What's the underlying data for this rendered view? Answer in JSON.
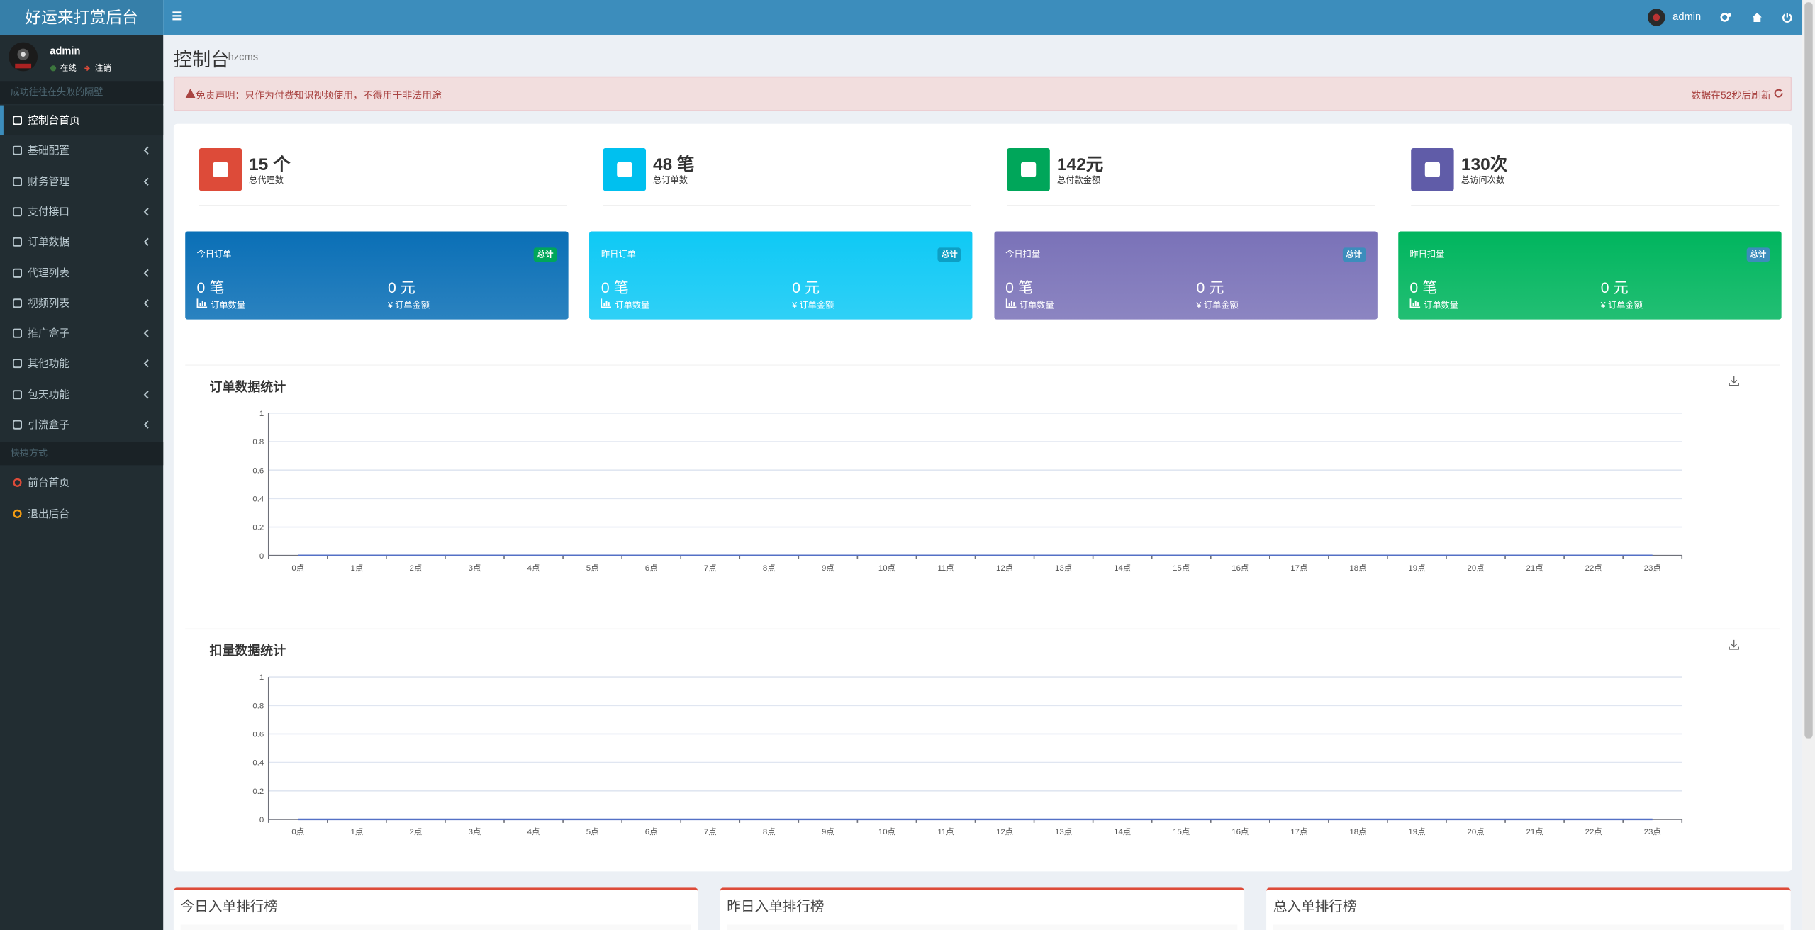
{
  "header": {
    "site_title": "好运来打赏后台",
    "user_name": "admin"
  },
  "sidebar": {
    "user": {
      "name": "admin",
      "status": "在线",
      "logout": "注销"
    },
    "section_1": "成功往往在失败的隔壁",
    "menu": [
      "控制台首页",
      "基础配置",
      "财务管理",
      "支付接口",
      "订单数据",
      "代理列表",
      "视频列表",
      "推广盒子",
      "其他功能",
      "包天功能",
      "引流盒子"
    ],
    "section_2": "快捷方式",
    "shortcuts": [
      "前台首页",
      "退出后台"
    ]
  },
  "page": {
    "title": "控制台",
    "subtitle": "hzcms"
  },
  "alert": {
    "text": "免责声明：只作为付费知识视频使用，不得用于非法用途",
    "refresh": "数据在52秒后刷新"
  },
  "info_boxes": [
    {
      "value": "15 个",
      "label": "总代理数",
      "color": "#dd4b39"
    },
    {
      "value": "48 笔",
      "label": "总订单数",
      "color": "#00c0ef"
    },
    {
      "value": "142元",
      "label": "总付款金额",
      "color": "#00a65a"
    },
    {
      "value": "130次",
      "label": "总访问次数",
      "color": "#605ca8"
    }
  ],
  "stat_boxes": [
    {
      "title": "今日订单",
      "badge": "总计",
      "count": "0 笔",
      "count_label": "订单数量",
      "amount": "0 元",
      "amount_label": "¥ 订单金额",
      "color": "#0a6fb6",
      "badge_color": "#00a65a"
    },
    {
      "title": "昨日订单",
      "badge": "总计",
      "count": "0 笔",
      "count_label": "订单数量",
      "amount": "0 元",
      "amount_label": "¥ 订单金额",
      "color": "#0fc9f5",
      "badge_color": "#0d9fc4"
    },
    {
      "title": "今日扣量",
      "badge": "总计",
      "count": "0 笔",
      "count_label": "订单数量",
      "amount": "0 元",
      "amount_label": "¥ 订单金额",
      "color": "#7a72b8",
      "badge_color": "#3c8dbc"
    },
    {
      "title": "昨日扣量",
      "badge": "总计",
      "count": "0 笔",
      "count_label": "订单数量",
      "amount": "0 元",
      "amount_label": "¥ 订单金额",
      "color": "#00b55e",
      "badge_color": "#3c8dbc"
    }
  ],
  "chart_data": [
    {
      "type": "line",
      "title": "订单数据统计",
      "categories": [
        "0点",
        "1点",
        "2点",
        "3点",
        "4点",
        "5点",
        "6点",
        "7点",
        "8点",
        "9点",
        "10点",
        "11点",
        "12点",
        "13点",
        "14点",
        "15点",
        "16点",
        "17点",
        "18点",
        "19点",
        "20点",
        "21点",
        "22点",
        "23点"
      ],
      "values": [
        0,
        0,
        0,
        0,
        0,
        0,
        0,
        0,
        0,
        0,
        0,
        0,
        0,
        0,
        0,
        0,
        0,
        0,
        0,
        0,
        0,
        0,
        0,
        0
      ],
      "color": "#5470c6",
      "ylim": [
        0,
        1
      ],
      "yticks": [
        0,
        0.2,
        0.4,
        0.6,
        0.8,
        1
      ],
      "grid": true
    },
    {
      "type": "line",
      "title": "扣量数据统计",
      "categories": [
        "0点",
        "1点",
        "2点",
        "3点",
        "4点",
        "5点",
        "6点",
        "7点",
        "8点",
        "9点",
        "10点",
        "11点",
        "12点",
        "13点",
        "14点",
        "15点",
        "16点",
        "17点",
        "18点",
        "19点",
        "20点",
        "21点",
        "22点",
        "23点"
      ],
      "values": [
        0,
        0,
        0,
        0,
        0,
        0,
        0,
        0,
        0,
        0,
        0,
        0,
        0,
        0,
        0,
        0,
        0,
        0,
        0,
        0,
        0,
        0,
        0,
        0
      ],
      "color": "#5470c6",
      "ylim": [
        0,
        1
      ],
      "yticks": [
        0,
        0.2,
        0.4,
        0.6,
        0.8,
        1
      ],
      "grid": true
    }
  ],
  "rankings": [
    "今日入单排行榜",
    "昨日入单排行榜",
    "总入单排行榜"
  ]
}
